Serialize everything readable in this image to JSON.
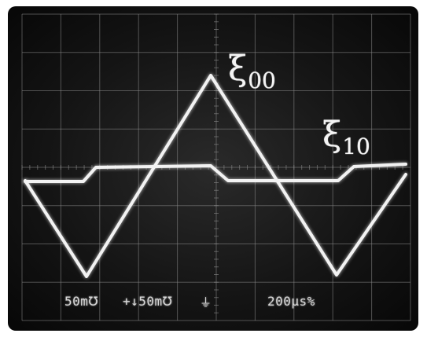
{
  "trace_labels": {
    "upper": {
      "symbol": "ξ",
      "subscript": "00"
    },
    "lower": {
      "symbol": "ξ",
      "subscript": "10"
    }
  },
  "readouts": {
    "ch1": "50m℧",
    "ch2": "+↓50m℧",
    "ch2_icon": "ground-icon",
    "timebase": "200μs%"
  },
  "colors": {
    "trace": "#f2f2f2",
    "graticule": "#8a8a8a",
    "screen": "#151515"
  }
}
